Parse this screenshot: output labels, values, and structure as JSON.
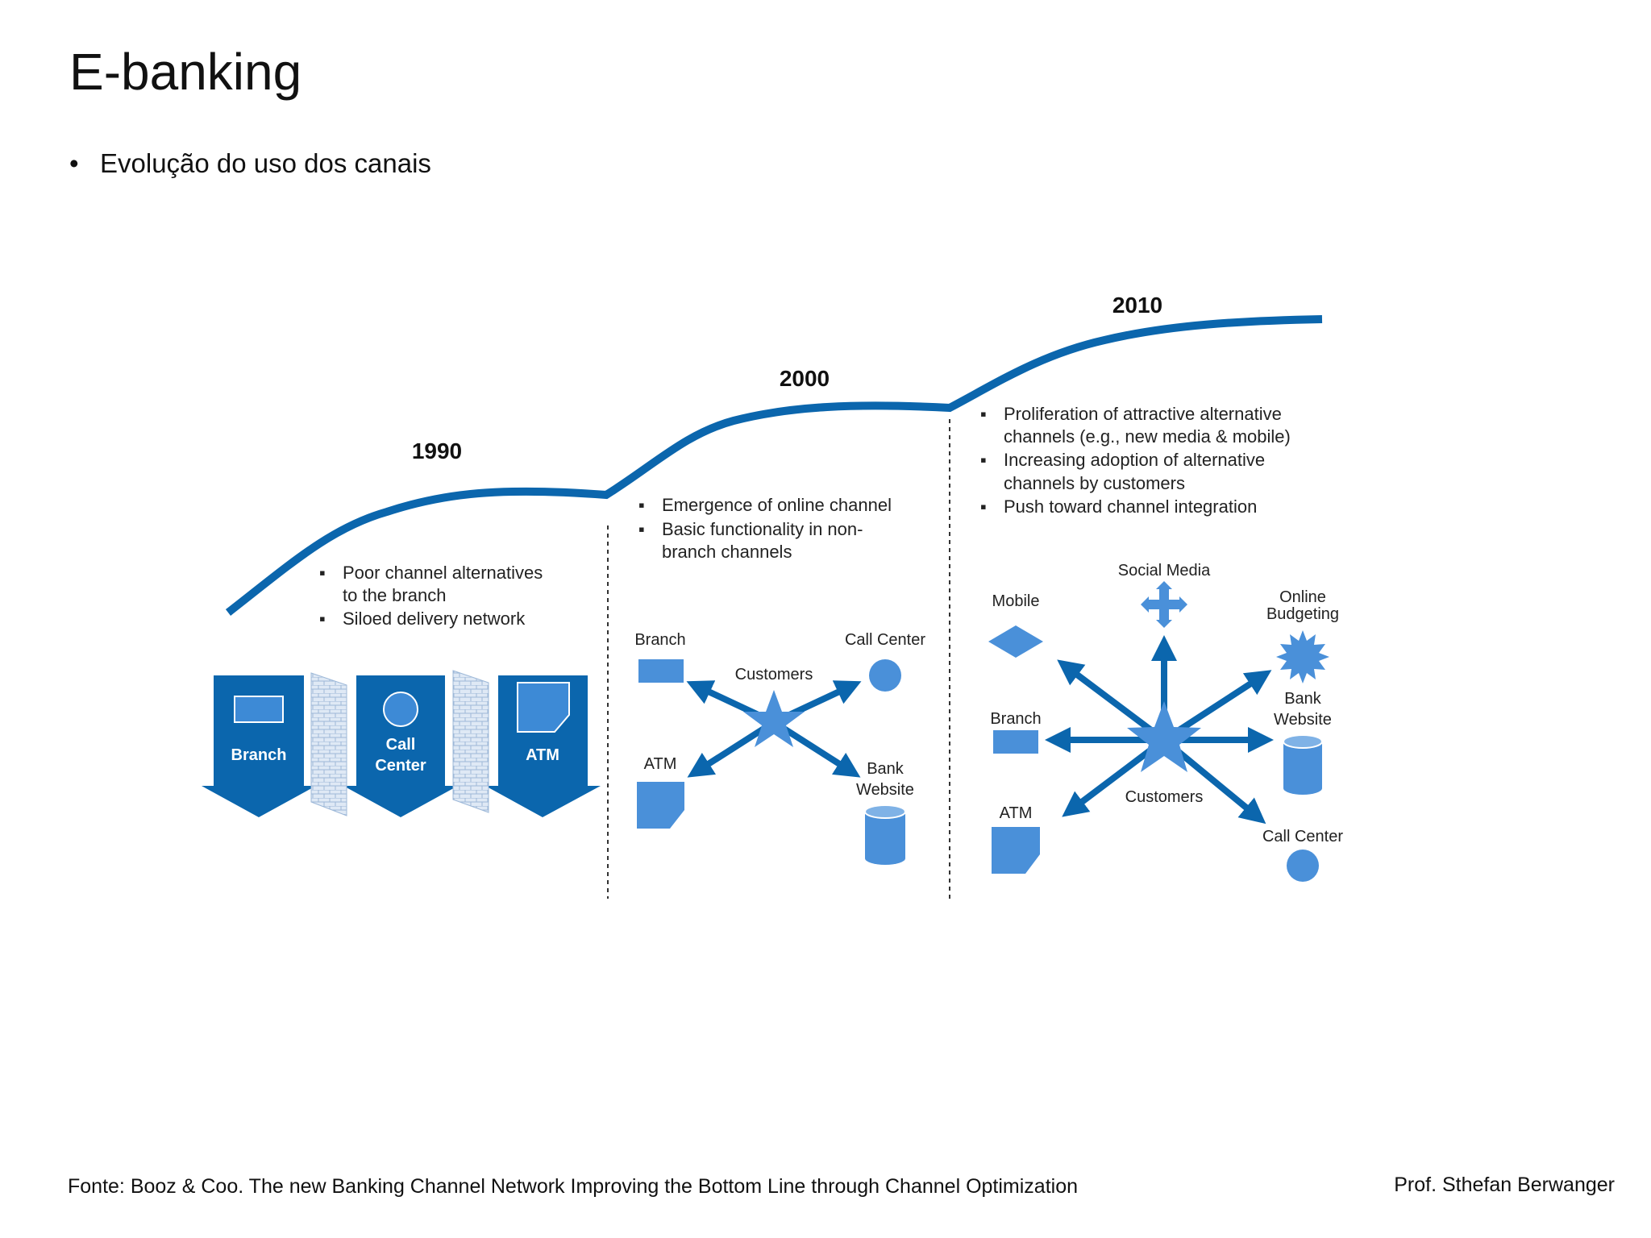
{
  "slide": {
    "title": "E-banking",
    "bullet": "Evolução do uso dos canais"
  },
  "diagram": {
    "curve_color": "#0b66ad",
    "icon_color": "#4a90d9",
    "era_1990": {
      "year": "1990",
      "notes": [
        "Poor channel alternatives",
        "to the branch",
        "Siloed delivery network"
      ],
      "channels": [
        "Branch",
        "Call",
        "Center",
        "ATM"
      ]
    },
    "era_2000": {
      "year": "2000",
      "notes": [
        "Emergence of online channel",
        "Basic functionality in non-",
        "branch channels"
      ],
      "hub": "Customers",
      "channels": {
        "branch": "Branch",
        "call_center": "Call Center",
        "atm": "ATM",
        "bank": "Bank",
        "website": "Website"
      }
    },
    "era_2010": {
      "year": "2010",
      "notes": [
        "Proliferation of attractive alternative",
        "channels (e.g., new media & mobile)",
        "Increasing adoption of alternative",
        "channels by customers",
        "Push toward channel integration"
      ],
      "hub": "Customers",
      "channels": {
        "social_media": "Social Media",
        "mobile": "Mobile",
        "online": "Online",
        "budgeting": "Budgeting",
        "branch": "Branch",
        "bank": "Bank",
        "website": "Website",
        "atm": "ATM",
        "call_center": "Call Center"
      }
    }
  },
  "footer": {
    "source": "Fonte: Booz & Coo. The new Banking Channel Network Improving the Bottom Line through Channel Optimization",
    "author": "Prof. Sthefan Berwanger"
  }
}
